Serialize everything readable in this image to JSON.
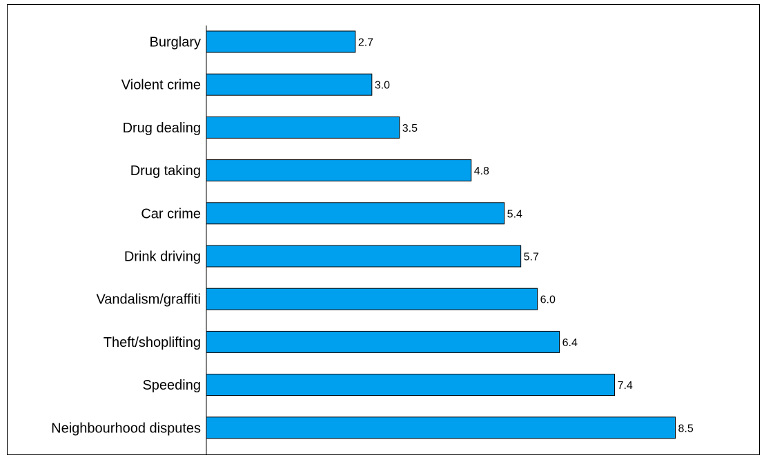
{
  "chart_data": {
    "type": "bar",
    "orientation": "horizontal",
    "categories": [
      "Burglary",
      "Violent crime",
      "Drug dealing",
      "Drug taking",
      "Car crime",
      "Drink driving",
      "Vandalism/graffiti",
      "Theft/shoplifting",
      "Speeding",
      "Neighbourhood disputes"
    ],
    "values": [
      2.7,
      3.0,
      3.5,
      4.8,
      5.4,
      5.7,
      6.0,
      6.4,
      7.4,
      8.5
    ],
    "value_labels": [
      "2.7",
      "3.0",
      "3.5",
      "4.8",
      "5.4",
      "5.7",
      "6.0",
      "6.4",
      "7.4",
      "8.5"
    ],
    "title": "",
    "xlabel": "",
    "ylabel": "",
    "xlim": [
      0,
      9
    ],
    "grid": false,
    "legend": "none",
    "bar_color": "#00A0EE",
    "bar_edge_color": "#000000"
  }
}
